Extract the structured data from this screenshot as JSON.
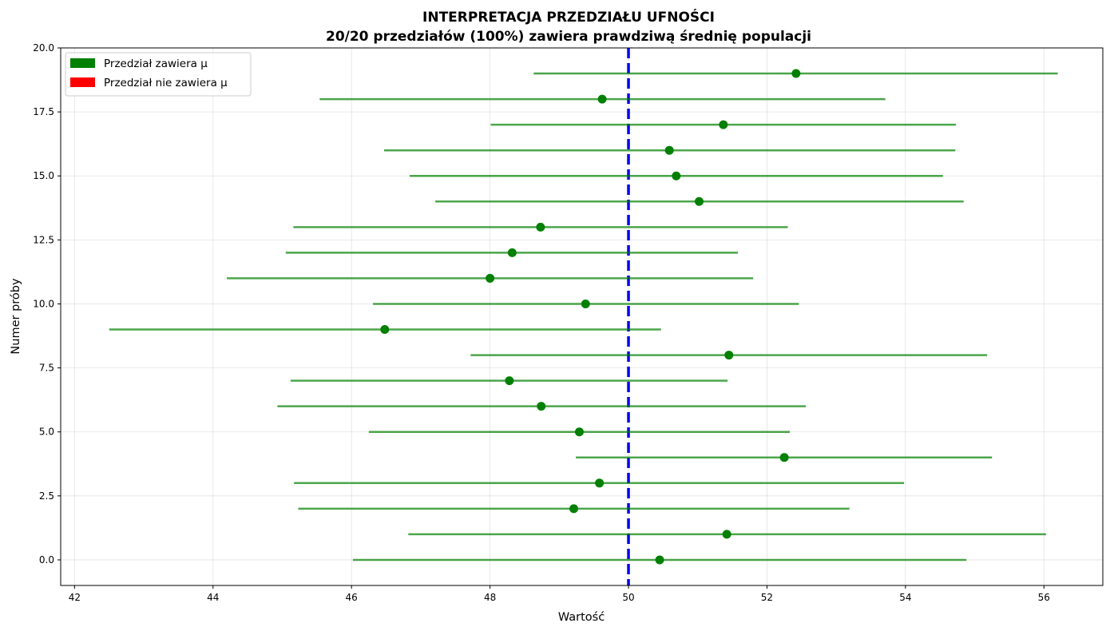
{
  "chart_data": {
    "type": "scatter",
    "title": "INTERPRETACJA PRZEDZIAŁU UFNOŚCI",
    "subtitle": "20/20 przedziałów (100%) zawiera prawdziwą średnię populacji",
    "xlabel": "Wartość",
    "ylabel": "Numer próby",
    "xlim": [
      41.8,
      56.85
    ],
    "ylim": [
      -1,
      20
    ],
    "x_ticks": [
      "42",
      "44",
      "46",
      "48",
      "50",
      "52",
      "54",
      "56"
    ],
    "y_ticks": [
      "0.0",
      "2.5",
      "5.0",
      "7.5",
      "10.0",
      "12.5",
      "15.0",
      "17.5",
      "20.0"
    ],
    "grid": true,
    "true_mean": 50,
    "true_mean_color": "#0000ee",
    "legend_position": "top-left",
    "legend": [
      {
        "label": "Przedział zawiera μ",
        "color": "#008000"
      },
      {
        "label": "Przedział nie zawiera μ",
        "color": "#ff0000"
      }
    ],
    "series": [
      {
        "color": "#008000",
        "points": [
          {
            "sample": 0,
            "mean": 50.45,
            "low": 46.02,
            "high": 54.88
          },
          {
            "sample": 1,
            "mean": 51.42,
            "low": 46.82,
            "high": 56.03
          },
          {
            "sample": 2,
            "mean": 49.21,
            "low": 45.23,
            "high": 53.19
          },
          {
            "sample": 3,
            "mean": 49.58,
            "low": 45.17,
            "high": 53.98
          },
          {
            "sample": 4,
            "mean": 52.25,
            "low": 49.24,
            "high": 55.25
          },
          {
            "sample": 5,
            "mean": 49.29,
            "low": 46.25,
            "high": 52.33
          },
          {
            "sample": 6,
            "mean": 48.74,
            "low": 44.93,
            "high": 52.56
          },
          {
            "sample": 7,
            "mean": 48.28,
            "low": 45.12,
            "high": 51.43
          },
          {
            "sample": 8,
            "mean": 51.45,
            "low": 47.72,
            "high": 55.18
          },
          {
            "sample": 9,
            "mean": 46.48,
            "low": 42.5,
            "high": 50.47
          },
          {
            "sample": 10,
            "mean": 49.38,
            "low": 46.31,
            "high": 52.46
          },
          {
            "sample": 11,
            "mean": 48.0,
            "low": 44.2,
            "high": 51.8
          },
          {
            "sample": 12,
            "mean": 48.32,
            "low": 45.05,
            "high": 51.58
          },
          {
            "sample": 13,
            "mean": 48.73,
            "low": 45.16,
            "high": 52.3
          },
          {
            "sample": 14,
            "mean": 51.02,
            "low": 47.21,
            "high": 54.84
          },
          {
            "sample": 15,
            "mean": 50.69,
            "low": 46.84,
            "high": 54.54
          },
          {
            "sample": 16,
            "mean": 50.59,
            "low": 46.47,
            "high": 54.72
          },
          {
            "sample": 17,
            "mean": 51.37,
            "low": 48.01,
            "high": 54.73
          },
          {
            "sample": 18,
            "mean": 49.62,
            "low": 45.54,
            "high": 53.71
          },
          {
            "sample": 19,
            "mean": 52.42,
            "low": 48.63,
            "high": 56.2
          }
        ]
      }
    ]
  }
}
